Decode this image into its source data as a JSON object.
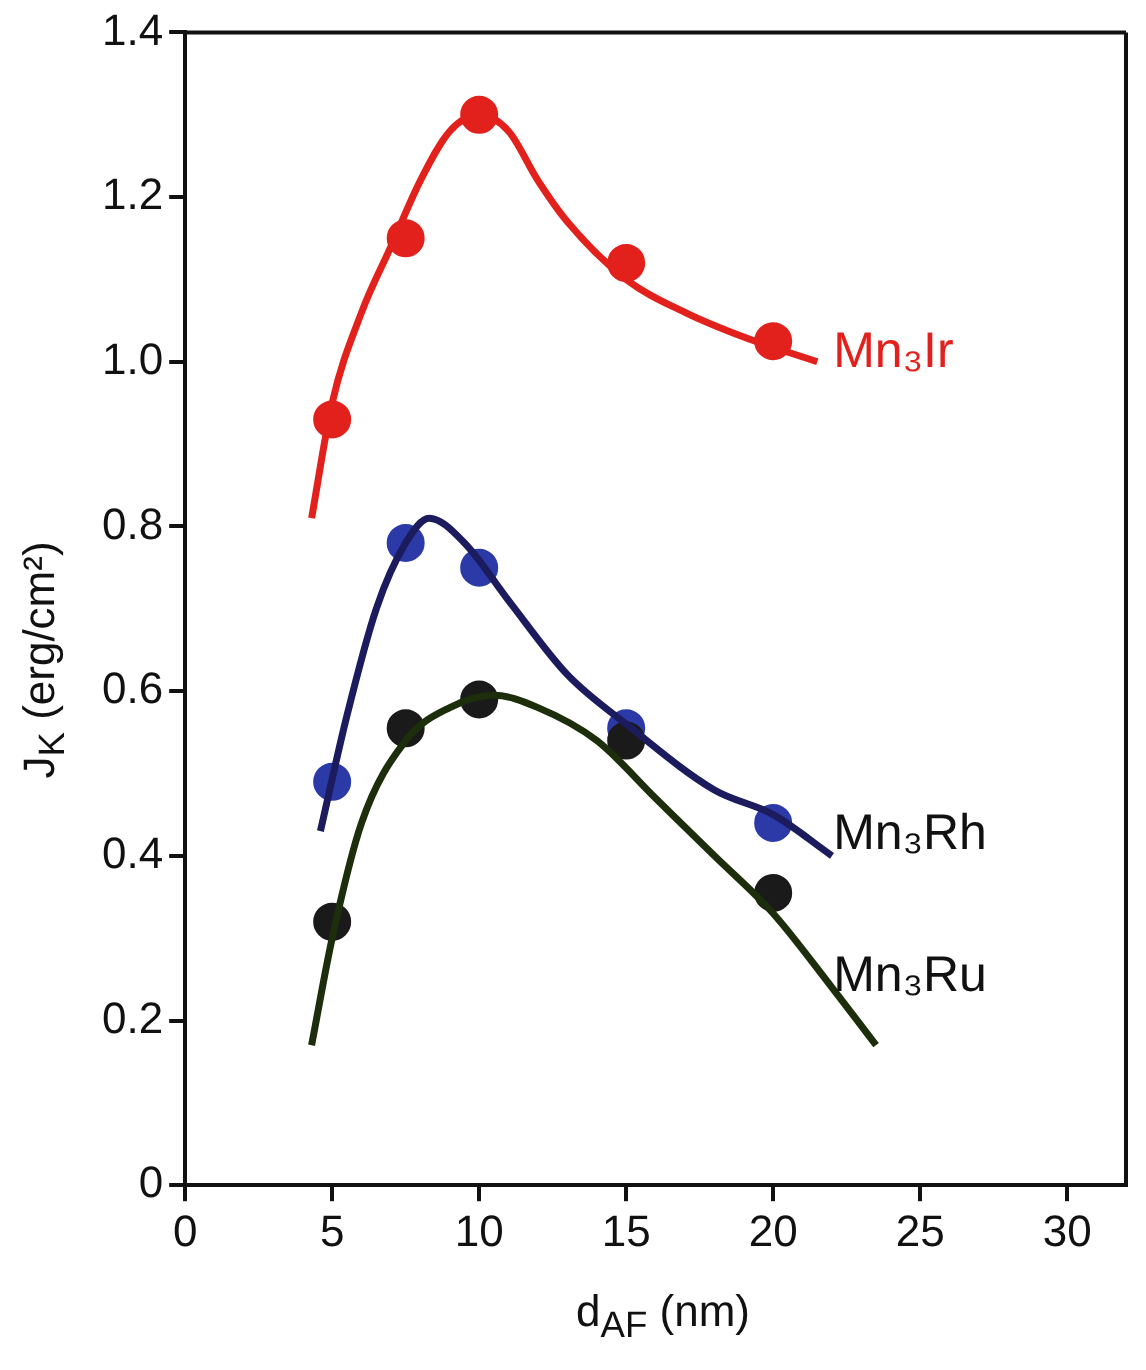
{
  "chart_data": {
    "type": "scatter",
    "xlabel": "d$_{AF}$ (nm)",
    "ylabel": "J$_{K}$ (erg/cm²)",
    "xlim": [
      0,
      32
    ],
    "ylim": [
      0,
      1.4
    ],
    "xticks": [
      0,
      5,
      10,
      15,
      20,
      25,
      30
    ],
    "yticks": [
      0,
      {
        "value": 0.2,
        "label": "0.2"
      },
      {
        "value": 0.4,
        "label": "0.4"
      },
      {
        "value": 0.6,
        "label": "0.6"
      },
      {
        "value": 0.8,
        "label": "0.8"
      },
      {
        "value": 1,
        "label": "1.0"
      },
      {
        "value": 1.2,
        "label": "1.2"
      },
      {
        "value": 1.4,
        "label": "1.4"
      }
    ],
    "grid": false,
    "legend": false,
    "marker": "circle",
    "series": [
      {
        "name": "Mn₃Ir",
        "color": "#e3211c",
        "x": [
          5,
          7.5,
          10,
          15,
          20
        ],
        "values": [
          0.93,
          1.15,
          1.3,
          1.12,
          1.025
        ]
      },
      {
        "name": "Mn₃Rh",
        "color": "#2b3aa6",
        "x": [
          5,
          7.5,
          10,
          15,
          20
        ],
        "values": [
          0.49,
          0.78,
          0.75,
          0.555,
          0.44
        ]
      },
      {
        "name": "Mn₃Ru",
        "color": "#1a1a1a",
        "x": [
          5,
          7.5,
          10,
          15,
          20
        ],
        "values": [
          0.32,
          0.555,
          0.59,
          0.54,
          0.355
        ]
      },
      {
        "type": "line",
        "marker": "none",
        "color": "#e3211c",
        "x": [
          4.3,
          5,
          6,
          7,
          8,
          9,
          10,
          11,
          12,
          13,
          15,
          17,
          19,
          21.5
        ],
        "values": [
          0.81,
          0.95,
          1.06,
          1.14,
          1.22,
          1.28,
          1.3,
          1.28,
          1.22,
          1.17,
          1.1,
          1.06,
          1.03,
          1.0
        ]
      },
      {
        "type": "line",
        "marker": "none",
        "color": "#1b1b5e",
        "x": [
          4.6,
          5.5,
          6.5,
          7.5,
          8.3,
          9.5,
          11,
          13,
          15,
          18,
          20,
          22
        ],
        "values": [
          0.43,
          0.57,
          0.7,
          0.78,
          0.81,
          0.78,
          0.71,
          0.62,
          0.56,
          0.48,
          0.45,
          0.4
        ]
      },
      {
        "type": "line",
        "marker": "none",
        "color": "#1c2e0c",
        "x": [
          4.3,
          5,
          6,
          7.5,
          9,
          10.5,
          12,
          14,
          16,
          18,
          20,
          22,
          23.5
        ],
        "values": [
          0.17,
          0.3,
          0.44,
          0.54,
          0.58,
          0.595,
          0.58,
          0.54,
          0.47,
          0.4,
          0.33,
          0.24,
          0.17
        ]
      }
    ]
  }
}
